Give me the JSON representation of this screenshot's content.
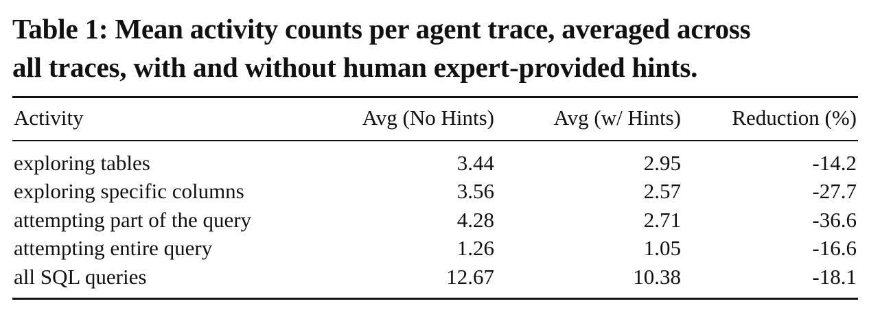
{
  "caption": {
    "line1": "Table 1: Mean activity counts per agent trace, averaged across",
    "line2": "all traces, with and without human expert-provided hints."
  },
  "table": {
    "headers": [
      "Activity",
      "Avg (No Hints)",
      "Avg (w/ Hints)",
      "Reduction (%)"
    ],
    "rows": [
      [
        "exploring tables",
        "3.44",
        "2.95",
        "-14.2"
      ],
      [
        "exploring specific columns",
        "3.56",
        "2.57",
        "-27.7"
      ],
      [
        "attempting part of the query",
        "4.28",
        "2.71",
        "-36.6"
      ],
      [
        "attempting entire query",
        "1.26",
        "1.05",
        "-16.6"
      ],
      [
        "all SQL queries",
        "12.67",
        "10.38",
        "-18.1"
      ]
    ]
  }
}
